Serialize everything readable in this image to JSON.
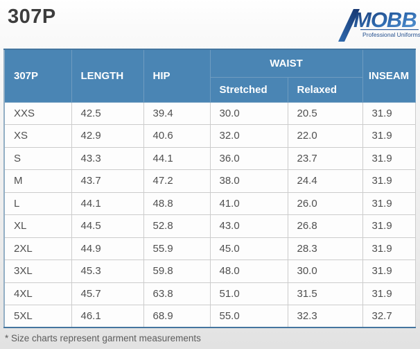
{
  "page": {
    "title": "307P",
    "footnote": "* Size charts represent garment measurements"
  },
  "logo": {
    "brand": "MOBB",
    "tagline": "Professional Uniforms",
    "gradient_dark": "#16356e",
    "gradient_mid": "#2f6bb0",
    "gradient_light": "#5b9bd8",
    "tagline_color": "#24508f"
  },
  "colors": {
    "header_bg": "#4a85b4",
    "header_text": "#ffffff",
    "header_divider": "#6f9cc0",
    "cell_border": "#cccccc",
    "cell_text": "#4f4f4f",
    "outline": "#44759f",
    "outline_side": "#92aec4"
  },
  "table": {
    "headers": {
      "product": "307P",
      "length": "LENGTH",
      "hip": "HIP",
      "waist": "WAIST",
      "stretched": "Stretched",
      "relaxed": "Relaxed",
      "inseam": "INSEAM"
    },
    "rows": [
      {
        "size": "XXS",
        "length": "42.5",
        "hip": "39.4",
        "waist_stretched": "30.0",
        "waist_relaxed": "20.5",
        "inseam": "31.9"
      },
      {
        "size": "XS",
        "length": "42.9",
        "hip": "40.6",
        "waist_stretched": "32.0",
        "waist_relaxed": "22.0",
        "inseam": "31.9"
      },
      {
        "size": "S",
        "length": "43.3",
        "hip": "44.1",
        "waist_stretched": "36.0",
        "waist_relaxed": "23.7",
        "inseam": "31.9"
      },
      {
        "size": "M",
        "length": "43.7",
        "hip": "47.2",
        "waist_stretched": "38.0",
        "waist_relaxed": "24.4",
        "inseam": "31.9"
      },
      {
        "size": "L",
        "length": "44.1",
        "hip": "48.8",
        "waist_stretched": "41.0",
        "waist_relaxed": "26.0",
        "inseam": "31.9"
      },
      {
        "size": "XL",
        "length": "44.5",
        "hip": "52.8",
        "waist_stretched": "43.0",
        "waist_relaxed": "26.8",
        "inseam": "31.9"
      },
      {
        "size": "2XL",
        "length": "44.9",
        "hip": "55.9",
        "waist_stretched": "45.0",
        "waist_relaxed": "28.3",
        "inseam": "31.9"
      },
      {
        "size": "3XL",
        "length": "45.3",
        "hip": "59.8",
        "waist_stretched": "48.0",
        "waist_relaxed": "30.0",
        "inseam": "31.9"
      },
      {
        "size": "4XL",
        "length": "45.7",
        "hip": "63.8",
        "waist_stretched": "51.0",
        "waist_relaxed": "31.5",
        "inseam": "31.9"
      },
      {
        "size": "5XL",
        "length": "46.1",
        "hip": "68.9",
        "waist_stretched": "55.0",
        "waist_relaxed": "32.3",
        "inseam": "32.7"
      }
    ]
  }
}
